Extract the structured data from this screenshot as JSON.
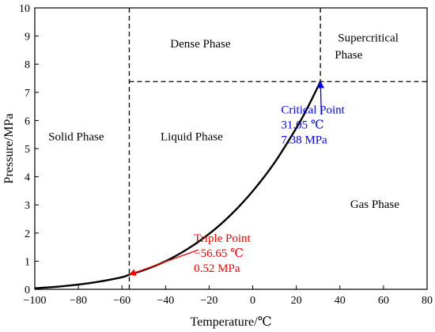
{
  "chart_data": {
    "type": "line",
    "title": "",
    "xlabel": "Temperature/℃",
    "ylabel": "Pressure/MPa",
    "xlim": [
      -100,
      80
    ],
    "ylim": [
      0,
      10
    ],
    "xticks": [
      -100,
      -80,
      -60,
      -40,
      -20,
      0,
      20,
      40,
      60,
      80
    ],
    "yticks": [
      0,
      1,
      2,
      3,
      4,
      5,
      6,
      7,
      8,
      9,
      10
    ],
    "grid": false,
    "series": [
      {
        "values": [
          {
            "x": -100,
            "y": 0.04
          },
          {
            "x": -90,
            "y": 0.09
          },
          {
            "x": -80,
            "y": 0.17
          },
          {
            "x": -70,
            "y": 0.28
          },
          {
            "x": -60,
            "y": 0.43
          },
          {
            "x": -56.65,
            "y": 0.52
          },
          {
            "x": -50,
            "y": 0.68
          },
          {
            "x": -40,
            "y": 1.0
          },
          {
            "x": -30,
            "y": 1.43
          },
          {
            "x": -20,
            "y": 1.97
          },
          {
            "x": -10,
            "y": 2.65
          },
          {
            "x": 0,
            "y": 3.49
          },
          {
            "x": 10,
            "y": 4.5
          },
          {
            "x": 20,
            "y": 5.73
          },
          {
            "x": 25,
            "y": 6.43
          },
          {
            "x": 31.05,
            "y": 7.38
          }
        ]
      }
    ],
    "reference_lines": {
      "triple_point_x": -56.65,
      "critical_point_x": 31.05,
      "critical_point_y": 7.38
    },
    "region_labels": [
      {
        "text": "Solid Phase",
        "x": -81,
        "y": 5.3
      },
      {
        "text": "Liquid Phase",
        "x": -28,
        "y": 5.3
      },
      {
        "text": "Dense Phase",
        "x": -24,
        "y": 8.6
      },
      {
        "text": "Supercritical",
        "x": 53,
        "y": 8.8
      },
      {
        "text": "Phase",
        "x": 44,
        "y": 8.2
      },
      {
        "text": "Gas Phase",
        "x": 56,
        "y": 2.9
      }
    ],
    "annotations": [
      {
        "color": "#ff0000",
        "lines": [
          "Triple Point",
          "−56.65 ℃",
          "0.52 MPa"
        ],
        "point": {
          "x": -56.65,
          "y": 0.52
        },
        "arrow_from": {
          "x": -25,
          "y": 1.4
        },
        "text_at": {
          "x": -27,
          "y": 1.68
        }
      },
      {
        "color": "#0000ff",
        "lines": [
          "Critical Point",
          "31.05 ℃",
          "7.38 MPa"
        ],
        "point": {
          "x": 31.05,
          "y": 7.38
        },
        "arrow_from": {
          "x": 31.5,
          "y": 6.2
        },
        "text_at": {
          "x": 13,
          "y": 6.25
        }
      }
    ]
  }
}
